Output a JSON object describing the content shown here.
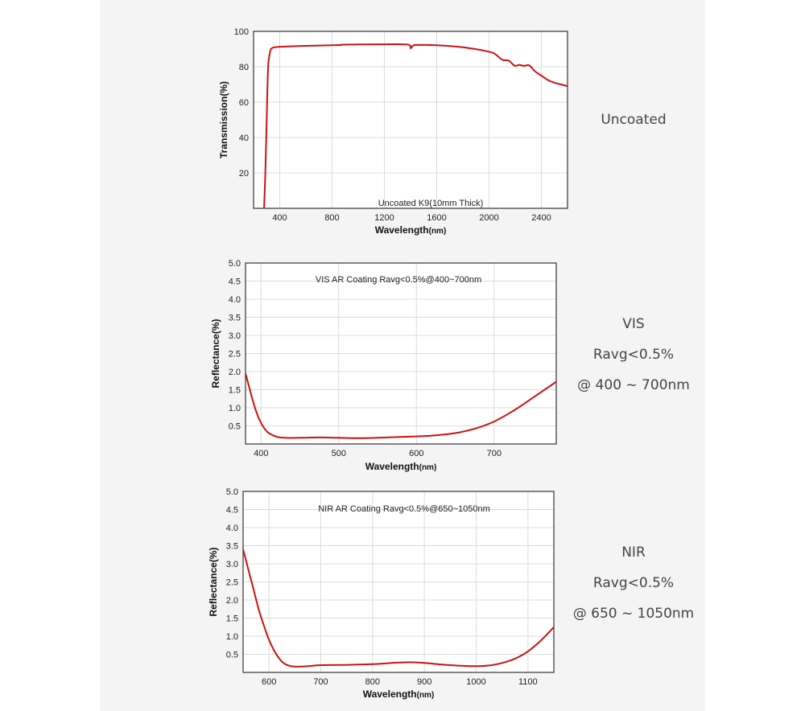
{
  "side_labels": {
    "uncoated": "Uncoated",
    "vis": {
      "name": "VIS",
      "ravg": "Ravg<0.5%",
      "range": "@ 400 ~ 700nm"
    },
    "nir": {
      "name": "NIR",
      "ravg": "Ravg<0.5%",
      "range": "@ 650 ~ 1050nm"
    }
  },
  "colors": {
    "curve": "#cc1111",
    "grid": "#dcdcdc",
    "frame": "#333333",
    "panel": "#f4f4f4"
  },
  "chart_data": [
    {
      "id": "uncoated",
      "type": "line",
      "annotation": "Uncoated K9(10mm Thick)",
      "xlabel": "Wavelength",
      "xlabel_unit": "(nm)",
      "ylabel": "Transmission(%)",
      "xlim": [
        200,
        2600
      ],
      "ylim": [
        0,
        100
      ],
      "xticks": [
        400,
        800,
        1200,
        1600,
        2000,
        2400
      ],
      "yticks": [
        20,
        40,
        60,
        80,
        100
      ],
      "grid": true,
      "series": [
        {
          "x": [
            280,
            290,
            300,
            310,
            320,
            330,
            340,
            360,
            400,
            500,
            600,
            700,
            800,
            870,
            880,
            1000,
            1200,
            1380,
            1400,
            1420,
            1450,
            1600,
            1800,
            2000,
            2050,
            2100,
            2150,
            2180,
            2200,
            2230,
            2270,
            2300,
            2320,
            2350,
            2400,
            2450,
            2500,
            2550,
            2600
          ],
          "y": [
            0,
            20,
            50,
            78,
            86,
            89.5,
            90.5,
            91,
            91.3,
            91.6,
            91.8,
            92,
            92.2,
            92.3,
            92.5,
            92.6,
            92.7,
            92.5,
            90.5,
            92,
            92.3,
            92.2,
            91,
            88.5,
            87,
            84,
            83.5,
            81.5,
            80.5,
            81,
            80.5,
            81,
            80,
            77.5,
            75,
            72.5,
            71,
            70,
            69
          ]
        }
      ]
    },
    {
      "id": "vis",
      "type": "line",
      "annotation": "VIS AR Coating Ravg<0.5%@400~700nm",
      "xlabel": "Wavelength",
      "xlabel_unit": "(nm)",
      "ylabel": "Reflectance(%)",
      "xlim": [
        380,
        780
      ],
      "ylim": [
        0,
        5
      ],
      "xticks": [
        400,
        500,
        600,
        700
      ],
      "yticks": [
        0.5,
        1.0,
        1.5,
        2.0,
        2.5,
        3.0,
        3.5,
        4.0,
        4.5,
        5.0
      ],
      "ytick_labels": [
        "0.5",
        "1.0",
        "1.5",
        "2.0",
        "2.5",
        "3.0",
        "3.5",
        "4.0",
        "4.5",
        "5.0"
      ],
      "grid": true,
      "series": [
        {
          "x": [
            380,
            385,
            390,
            395,
            400,
            405,
            410,
            420,
            430,
            450,
            475,
            500,
            525,
            550,
            575,
            600,
            625,
            650,
            675,
            700,
            725,
            750,
            780
          ],
          "y": [
            1.95,
            1.55,
            1.15,
            0.82,
            0.58,
            0.41,
            0.3,
            0.2,
            0.17,
            0.17,
            0.18,
            0.17,
            0.16,
            0.17,
            0.19,
            0.21,
            0.24,
            0.3,
            0.42,
            0.62,
            0.92,
            1.28,
            1.72
          ]
        }
      ]
    },
    {
      "id": "nir",
      "type": "line",
      "annotation": "NIR AR Coating Ravg<0.5%@650~1050nm",
      "xlabel": "Wavelength",
      "xlabel_unit": "(nm)",
      "ylabel": "Reflectance(%)",
      "xlim": [
        550,
        1150
      ],
      "ylim": [
        0,
        5
      ],
      "xticks": [
        600,
        700,
        800,
        900,
        1000,
        1100
      ],
      "yticks": [
        0.5,
        1.0,
        1.5,
        2.0,
        2.5,
        3.0,
        3.5,
        4.0,
        4.5,
        5.0
      ],
      "ytick_labels": [
        "0.5",
        "1.0",
        "1.5",
        "2.0",
        "2.5",
        "3.0",
        "3.5",
        "4.0",
        "4.5",
        "5.0"
      ],
      "grid": true,
      "series": [
        {
          "x": [
            550,
            560,
            570,
            580,
            590,
            600,
            610,
            620,
            630,
            640,
            650,
            675,
            700,
            750,
            800,
            850,
            875,
            900,
            950,
            1000,
            1025,
            1050,
            1075,
            1100,
            1125,
            1150
          ],
          "y": [
            3.4,
            2.85,
            2.3,
            1.75,
            1.3,
            0.9,
            0.6,
            0.38,
            0.24,
            0.18,
            0.16,
            0.17,
            0.2,
            0.21,
            0.23,
            0.27,
            0.28,
            0.26,
            0.2,
            0.17,
            0.19,
            0.26,
            0.38,
            0.58,
            0.88,
            1.25
          ]
        }
      ]
    }
  ]
}
